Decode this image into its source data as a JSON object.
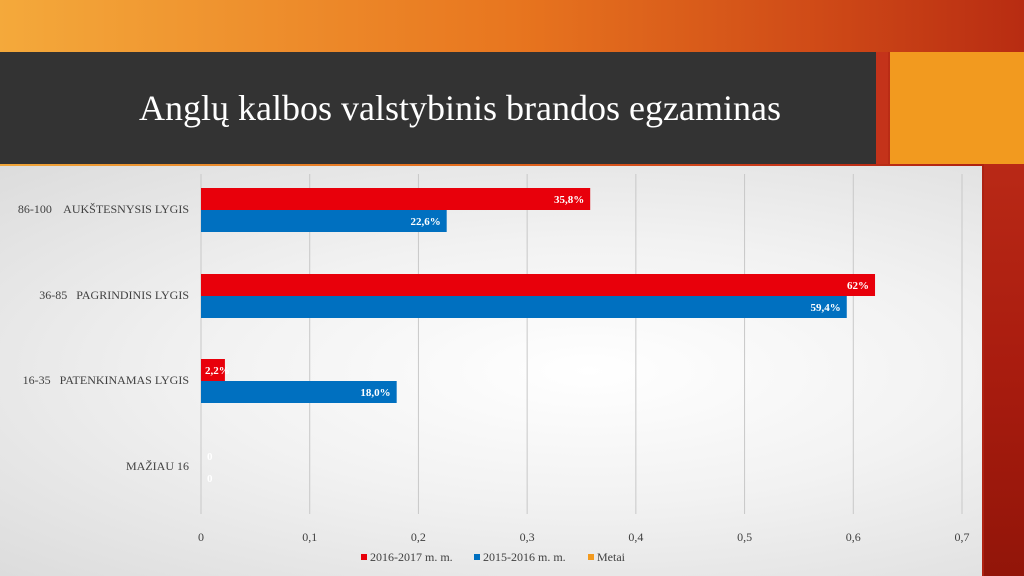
{
  "slide": {
    "title": "Anglų kalbos valstybinis brandos egzaminas"
  },
  "colors": {
    "series_2016": "#e8000b",
    "series_2015": "#0070c0",
    "series_metai": "#f29a1f",
    "title_bar": "#333333",
    "accent": "#f29a1f"
  },
  "chart_data": {
    "type": "bar",
    "orientation": "horizontal",
    "categories": [
      "86-100    AUKŠTESNYSIS LYGIS",
      "36-85   PAGRINDINIS LYGIS",
      "16-35   PATENKINAMAS LYGIS",
      "MAŽIAU 16"
    ],
    "series": [
      {
        "name": "2016-2017 m. m.",
        "values": [
          0.358,
          0.62,
          0.022,
          0
        ],
        "labels": [
          "35,8%",
          "62%",
          "2,2%",
          "0"
        ]
      },
      {
        "name": "2015-2016 m. m.",
        "values": [
          0.226,
          0.594,
          0.18,
          0
        ],
        "labels": [
          "22,6%",
          "59,4%",
          "18,0%",
          "0"
        ]
      },
      {
        "name": "Metai",
        "values": [
          0,
          0,
          0,
          0
        ],
        "labels": []
      }
    ],
    "xlim": [
      0,
      0.7
    ],
    "xticks": [
      "0",
      "0,1",
      "0,2",
      "0,3",
      "0,4",
      "0,5",
      "0,6",
      "0,7"
    ],
    "xtick_values": [
      0,
      0.1,
      0.2,
      0.3,
      0.4,
      0.5,
      0.6,
      0.7
    ],
    "grid": true,
    "legend_position": "bottom"
  }
}
